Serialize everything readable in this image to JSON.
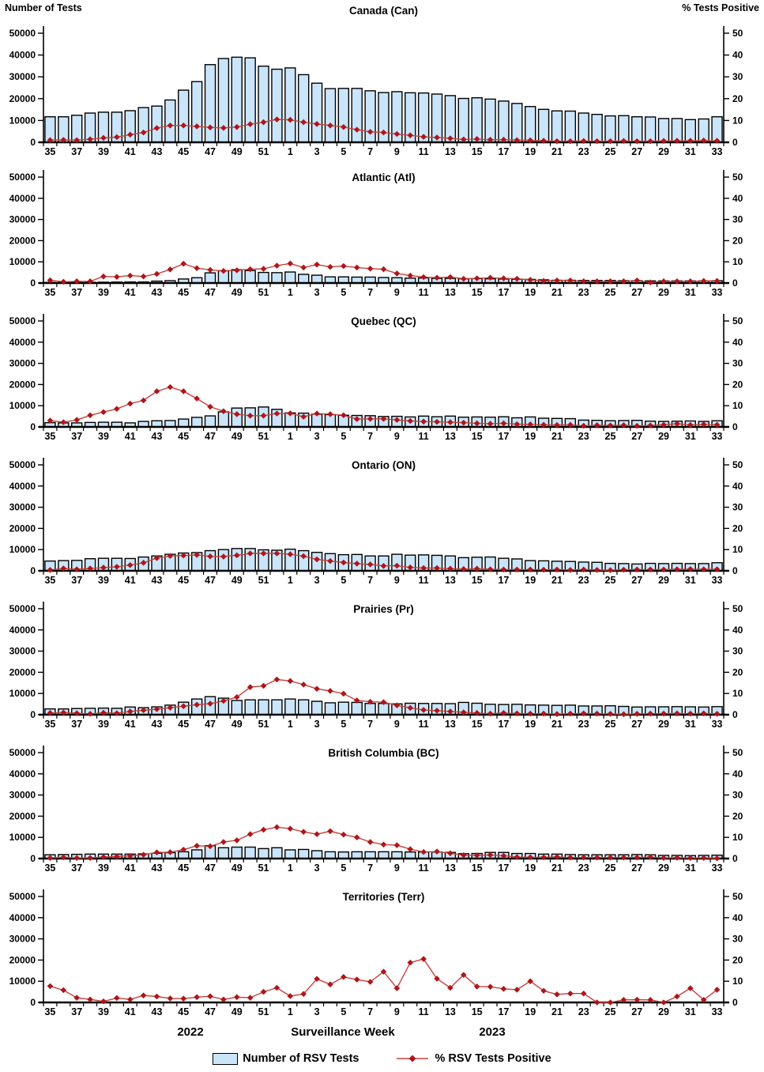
{
  "chart_data": {
    "type": "bar+line",
    "description": "RSV laboratory surveillance by region: weekly number of RSV tests (bars, left axis) and percent of RSV tests positive (line with diamond markers, right axis)",
    "xlabel": "Surveillance Week",
    "year_left": "2022",
    "year_right": "2023",
    "left_axis": {
      "label": "Number of Tests",
      "ticks": [
        0,
        10000,
        20000,
        30000,
        40000,
        50000
      ],
      "max": 50000
    },
    "right_axis": {
      "label": "% Tests Positive",
      "ticks": [
        0,
        10,
        20,
        30,
        40,
        50
      ],
      "max": 50
    },
    "legend": [
      "Number of RSV Tests",
      "% RSV Tests Positive"
    ],
    "colors": {
      "bar_fill": "#cae5fa",
      "bar_stroke": "#000000",
      "line": "#c5413e",
      "marker": "#b01519",
      "axis": "#000000"
    },
    "weeks": [
      35,
      36,
      37,
      38,
      39,
      40,
      41,
      42,
      43,
      44,
      45,
      46,
      47,
      48,
      49,
      50,
      51,
      52,
      1,
      2,
      3,
      4,
      5,
      6,
      7,
      8,
      9,
      10,
      11,
      12,
      13,
      14,
      15,
      16,
      17,
      18,
      19,
      20,
      21,
      22,
      23,
      24,
      25,
      26,
      27,
      28,
      29,
      30,
      31,
      32,
      33
    ],
    "x_tick_labels": [
      35,
      37,
      39,
      41,
      43,
      45,
      47,
      49,
      51,
      1,
      3,
      5,
      7,
      9,
      11,
      13,
      15,
      17,
      19,
      21,
      23,
      25,
      27,
      29,
      31,
      33
    ],
    "panels": [
      {
        "title": "Canada (Can)",
        "tests": [
          11700,
          11700,
          12400,
          13400,
          13800,
          13800,
          14500,
          15900,
          16600,
          19400,
          23900,
          27800,
          35600,
          38400,
          39000,
          38700,
          34900,
          33500,
          34100,
          31000,
          27100,
          24600,
          24700,
          24700,
          23600,
          22800,
          23200,
          22700,
          22600,
          22100,
          21400,
          20100,
          20400,
          19800,
          18900,
          17800,
          16400,
          15100,
          14400,
          14300,
          13400,
          12800,
          12100,
          12200,
          11700,
          11600,
          10900,
          10900,
          10400,
          10700,
          11700
        ],
        "pct_positive": [
          1.0,
          1.1,
          1.0,
          1.4,
          2.0,
          2.4,
          3.5,
          4.5,
          6.5,
          7.7,
          7.7,
          7.3,
          6.8,
          6.6,
          7.0,
          8.3,
          9.2,
          10.5,
          10.3,
          9.2,
          8.4,
          7.7,
          7.0,
          5.8,
          4.8,
          4.5,
          3.8,
          3.2,
          2.5,
          2.2,
          1.8,
          1.3,
          1.5,
          1.2,
          1.2,
          1.0,
          0.9,
          0.7,
          0.5,
          0.5,
          0.6,
          0.5,
          0.5,
          0.6,
          0.5,
          0.5,
          0.6,
          0.7,
          0.7,
          0.8,
          0.7
        ]
      },
      {
        "title": "Atlantic (Atl)",
        "tests": [
          300,
          300,
          300,
          350,
          400,
          450,
          500,
          500,
          900,
          1100,
          1900,
          2500,
          4800,
          5800,
          6300,
          5900,
          5000,
          4900,
          5200,
          4100,
          3700,
          2900,
          2900,
          2800,
          2800,
          2600,
          2500,
          2300,
          2400,
          2200,
          2200,
          2000,
          2100,
          2000,
          1900,
          1800,
          1700,
          1500,
          1300,
          1300,
          1200,
          1200,
          1200,
          1100,
          1100,
          1000,
          1000,
          1000,
          1000,
          1000,
          1100
        ],
        "pct_positive": [
          1.3,
          0.6,
          0.8,
          0.8,
          3.1,
          2.9,
          3.5,
          3.1,
          4.3,
          6.4,
          9.1,
          7.0,
          6.2,
          5.7,
          6.0,
          6.5,
          6.7,
          8.2,
          9.2,
          7.3,
          8.7,
          7.6,
          8.0,
          7.3,
          6.8,
          6.5,
          4.5,
          3.5,
          2.8,
          2.5,
          2.8,
          2.0,
          2.2,
          2.5,
          2.2,
          2.0,
          1.5,
          1.0,
          1.2,
          1.2,
          0.8,
          0.8,
          0.8,
          0.8,
          1.2,
          0.3,
          0.8,
          0.8,
          0.8,
          1.0,
          1.0
        ]
      },
      {
        "title": "Quebec (QC)",
        "tests": [
          2000,
          1900,
          1900,
          2100,
          2200,
          2200,
          1900,
          2600,
          2900,
          3000,
          3700,
          4500,
          5200,
          7100,
          8900,
          9000,
          9400,
          8300,
          6600,
          6500,
          6000,
          5800,
          5500,
          5400,
          5300,
          4900,
          5000,
          4700,
          5100,
          4800,
          5100,
          4600,
          4700,
          4600,
          4800,
          4300,
          4700,
          4100,
          4000,
          3900,
          3200,
          3100,
          2900,
          3000,
          3100,
          2700,
          2600,
          2700,
          2800,
          2600,
          2900
        ],
        "pct_positive": [
          3.0,
          2.2,
          3.3,
          5.5,
          7.0,
          8.5,
          11.0,
          12.5,
          16.8,
          18.8,
          16.8,
          13.4,
          9.5,
          7.4,
          6.0,
          5.3,
          5.3,
          6.3,
          6.4,
          4.8,
          6.3,
          6.0,
          5.5,
          3.7,
          3.8,
          3.8,
          3.3,
          2.8,
          2.5,
          2.4,
          2.2,
          2.0,
          1.7,
          1.5,
          1.7,
          1.3,
          1.2,
          1.0,
          0.9,
          1.0,
          0.5,
          0.8,
          0.7,
          0.8,
          0.5,
          0.7,
          1.0,
          1.5,
          0.9,
          1.2,
          1.0
        ]
      },
      {
        "title": "Ontario (ON)",
        "tests": [
          4600,
          4800,
          4900,
          5700,
          5900,
          5900,
          5800,
          6500,
          7000,
          7800,
          8400,
          8600,
          9500,
          10000,
          10500,
          10500,
          9900,
          9700,
          10200,
          9500,
          8700,
          8100,
          7600,
          7700,
          7000,
          7000,
          7800,
          7400,
          7500,
          7300,
          7000,
          6200,
          6400,
          6500,
          5900,
          5600,
          4800,
          4700,
          4500,
          4400,
          4100,
          4000,
          3500,
          3400,
          3200,
          3500,
          3400,
          3500,
          3400,
          3400,
          3800
        ],
        "pct_positive": [
          0.4,
          1.1,
          0.7,
          1.1,
          1.5,
          1.9,
          2.7,
          3.8,
          6.0,
          7.0,
          7.2,
          7.5,
          6.8,
          6.7,
          7.3,
          8.2,
          8.2,
          8.2,
          7.8,
          6.9,
          5.4,
          4.6,
          3.9,
          3.4,
          3.0,
          2.3,
          2.4,
          1.6,
          1.3,
          1.3,
          1.0,
          0.8,
          1.0,
          0.7,
          0.6,
          0.6,
          0.6,
          0.5,
          0.6,
          0.4,
          0.6,
          0.4,
          0.3,
          0.5,
          0.6,
          0.6,
          0.6,
          0.7,
          0.8,
          0.7,
          0.7
        ]
      },
      {
        "title": "Prairies (Pr)",
        "tests": [
          2700,
          2700,
          2900,
          3000,
          3100,
          3000,
          3600,
          3300,
          3700,
          4500,
          5900,
          7400,
          8500,
          7800,
          6700,
          7000,
          7000,
          7000,
          7400,
          7000,
          6300,
          5600,
          5900,
          5800,
          5300,
          5300,
          5100,
          5400,
          5300,
          5300,
          5200,
          5800,
          5400,
          4900,
          4800,
          4900,
          4600,
          4500,
          4400,
          4500,
          4100,
          4100,
          4200,
          3900,
          3600,
          3700,
          3700,
          3800,
          3700,
          3600,
          3800
        ],
        "pct_positive": [
          0.8,
          1.0,
          0.7,
          0.4,
          0.9,
          0.7,
          1.5,
          2.1,
          2.6,
          3.3,
          4.0,
          4.7,
          5.2,
          6.5,
          8.3,
          13.0,
          13.6,
          16.6,
          15.9,
          14.2,
          12.2,
          11.2,
          9.9,
          6.7,
          6.1,
          5.9,
          4.4,
          3.2,
          2.2,
          1.9,
          1.5,
          1.1,
          0.8,
          0.5,
          0.8,
          0.6,
          0.5,
          0.5,
          0.3,
          0.5,
          0.6,
          0.5,
          0.4,
          0.2,
          0.4,
          0.5,
          0.5,
          0.6,
          0.5,
          0.6,
          0.4
        ]
      },
      {
        "title": "British Columbia (BC)",
        "tests": [
          1800,
          1900,
          2000,
          2100,
          2100,
          2100,
          2100,
          2200,
          2500,
          2800,
          3200,
          4100,
          6100,
          5100,
          5400,
          5400,
          4700,
          5100,
          4100,
          4300,
          3700,
          3200,
          3100,
          3200,
          3200,
          3200,
          3200,
          3100,
          3100,
          3100,
          2900,
          2300,
          2400,
          2900,
          2900,
          2400,
          2400,
          2100,
          2100,
          1900,
          1800,
          1800,
          1800,
          1800,
          1900,
          1800,
          1500,
          1500,
          1400,
          1500,
          1600
        ],
        "pct_positive": [
          0.3,
          0.6,
          0.3,
          0.3,
          0.7,
          1.0,
          1.3,
          1.8,
          2.9,
          3.0,
          4.2,
          6.0,
          5.8,
          7.8,
          8.6,
          11.5,
          13.6,
          14.8,
          14.1,
          12.6,
          11.5,
          12.9,
          11.3,
          10.0,
          7.8,
          6.6,
          6.3,
          4.4,
          3.1,
          3.3,
          2.5,
          1.6,
          1.5,
          1.7,
          1.3,
          0.7,
          0.6,
          0.6,
          0.8,
          0.5,
          0.5,
          0.5,
          0.5,
          0.5,
          0.5,
          0.7,
          0.3,
          0.4,
          0.3,
          0.3,
          0.1
        ]
      },
      {
        "title": "Territories (Terr)",
        "tests": [
          0,
          0,
          0,
          0,
          0,
          0,
          0,
          0,
          0,
          0,
          0,
          0,
          0,
          0,
          0,
          0,
          0,
          0,
          0,
          0,
          0,
          0,
          0,
          0,
          0,
          0,
          0,
          0,
          0,
          0,
          0,
          0,
          0,
          0,
          0,
          0,
          0,
          0,
          0,
          0,
          0,
          0,
          0,
          0,
          0,
          0,
          0,
          0,
          0,
          0,
          0
        ],
        "pct_positive": [
          7.7,
          5.8,
          2.2,
          1.4,
          0.5,
          2.1,
          1.4,
          3.3,
          2.8,
          1.9,
          1.8,
          2.5,
          2.9,
          1.4,
          2.5,
          2.2,
          5.0,
          6.9,
          3.0,
          4.0,
          11.1,
          8.5,
          12.0,
          10.8,
          9.7,
          14.5,
          6.7,
          18.8,
          20.5,
          11.2,
          6.9,
          13.0,
          7.5,
          7.4,
          6.4,
          6.0,
          10.0,
          5.5,
          3.8,
          4.2,
          4.2,
          0.0,
          0.0,
          1.2,
          1.3,
          1.2,
          0.0,
          2.8,
          6.7,
          1.2,
          6.0
        ]
      }
    ]
  }
}
